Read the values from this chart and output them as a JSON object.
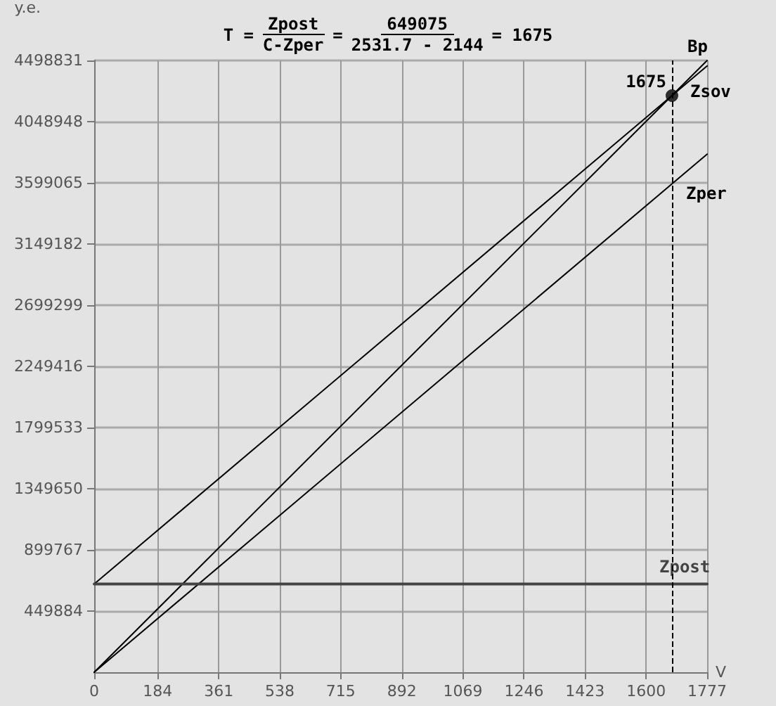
{
  "chart_data": {
    "type": "line",
    "title": [
      "T =",
      "Zpost",
      "C-Zper",
      "=",
      "649075",
      "2531.7 - 2144",
      "= 1675"
    ],
    "xlabel": "V",
    "ylabel": "y.e.",
    "xlim": [
      0,
      1777
    ],
    "xticks": [
      0,
      184,
      361,
      538,
      715,
      892,
      1069,
      1246,
      1423,
      1600,
      1777
    ],
    "ylim": [
      0,
      4498831
    ],
    "yticks": [
      449884,
      899767,
      1349650,
      1799533,
      2249416,
      2699299,
      3149182,
      3599065,
      4048948,
      4498831
    ],
    "grid": true,
    "marker": "none",
    "line_style": "solid",
    "legend": false,
    "series": [
      {
        "name": "Bp",
        "color": "#000000",
        "x": [
          0,
          1777
        ],
        "values": [
          0,
          4498831
        ]
      },
      {
        "name": "Zsov",
        "color": "#000000",
        "x": [
          0,
          1777
        ],
        "values": [
          649075,
          4458963
        ]
      },
      {
        "name": "Zper",
        "color": "#000000",
        "x": [
          0,
          1777
        ],
        "values": [
          0,
          3809888
        ]
      },
      {
        "name": "Zpost",
        "color": "#444444",
        "x": [
          0,
          1777
        ],
        "values": [
          649075,
          649075
        ]
      },
      {
        "type": "scatter",
        "marker": "circle",
        "color": "#000000",
        "x": [
          1675
        ],
        "values": [
          4240598
        ]
      }
    ],
    "annotations": [
      {
        "text": "1675",
        "x": 1675,
        "y": 4240598
      }
    ],
    "ref_lines": [
      {
        "axis": "x",
        "value": 1675,
        "line_style": "dashed",
        "color": "#000000"
      }
    ]
  }
}
